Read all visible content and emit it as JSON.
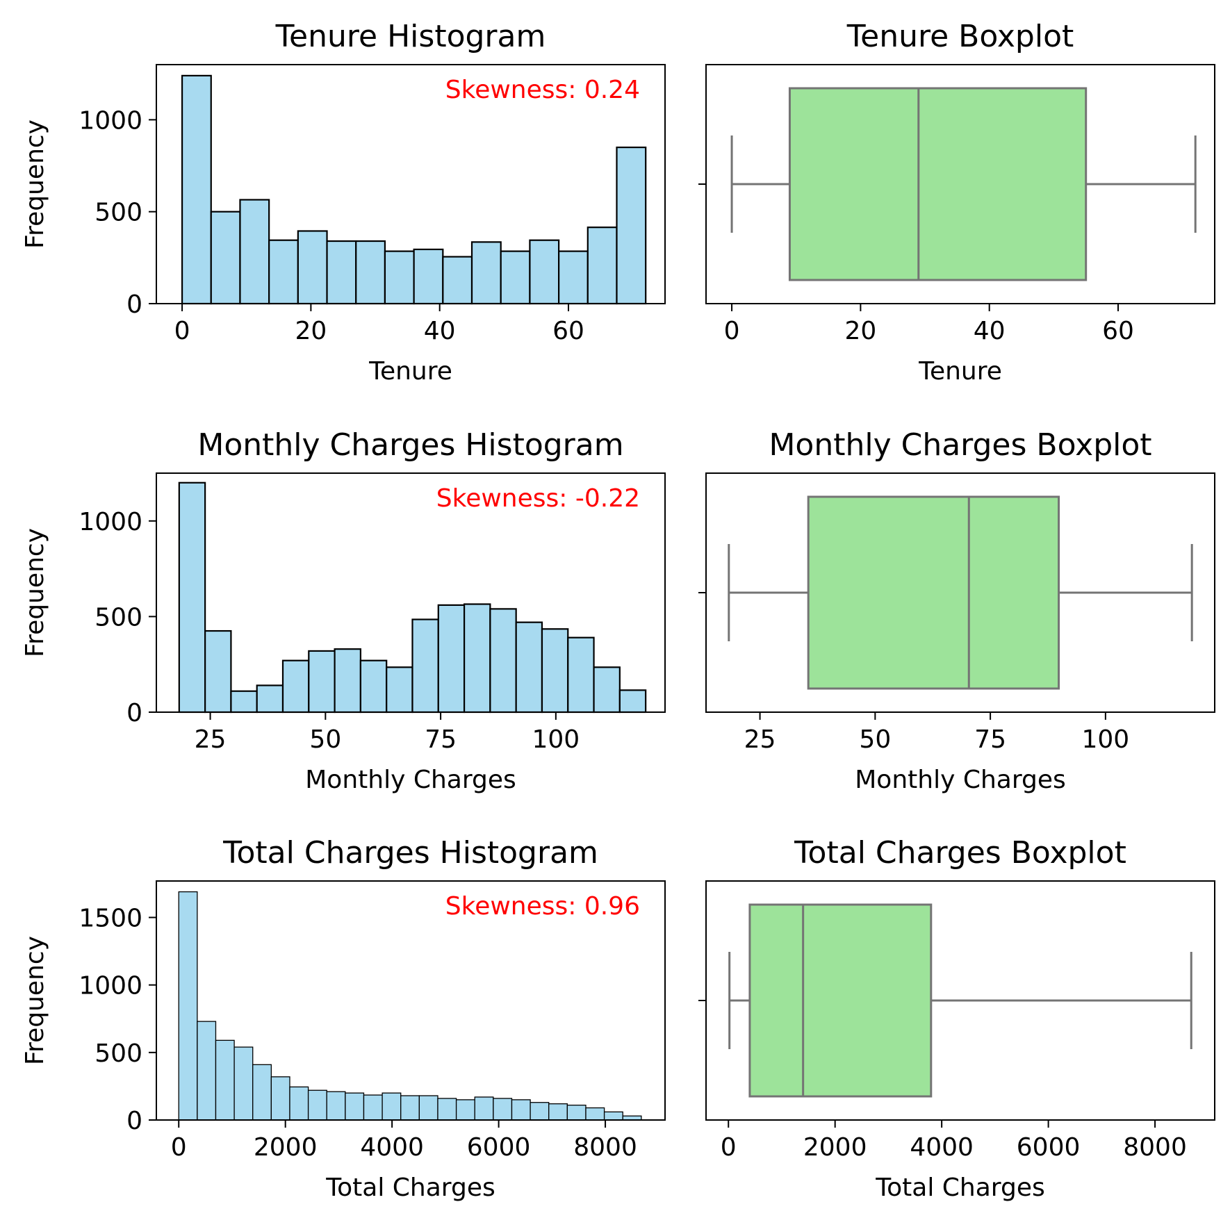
{
  "colors": {
    "hist_fill": "#a8daf0",
    "hist_edge": "#000000",
    "box_fill": "#9de39a",
    "box_line": "#747474",
    "skew_text": "#ff0000",
    "axis": "#000000"
  },
  "chart_data": [
    {
      "type": "bar",
      "title": "Tenure Histogram",
      "xlabel": "Tenure",
      "ylabel": "Frequency",
      "annotation": "Skewness: 0.24",
      "xlim": [
        -4,
        75
      ],
      "ylim": [
        0,
        1300
      ],
      "xticks": [
        0,
        20,
        40,
        60
      ],
      "yticks": [
        0,
        500,
        1000
      ],
      "bin_start": 0,
      "bin_width": 4.5,
      "values": [
        1240,
        500,
        565,
        345,
        395,
        340,
        340,
        285,
        295,
        255,
        335,
        285,
        345,
        285,
        415,
        850
      ]
    },
    {
      "type": "box",
      "title": "Tenure Boxplot",
      "xlabel": "Tenure",
      "xlim": [
        -4,
        75
      ],
      "xticks": [
        0,
        20,
        40,
        60
      ],
      "whisker_low": 0,
      "q1": 9,
      "median": 29,
      "q3": 55,
      "whisker_high": 72
    },
    {
      "type": "bar",
      "title": "Monthly Charges Histogram",
      "xlabel": "Monthly Charges",
      "ylabel": "Frequency",
      "annotation": "Skewness: -0.22",
      "xlim": [
        13.3,
        123.7
      ],
      "ylim": [
        0,
        1250
      ],
      "xticks": [
        25,
        50,
        75,
        100
      ],
      "yticks": [
        0,
        500,
        1000
      ],
      "bin_start": 18.25,
      "bin_width": 5.625,
      "values": [
        1200,
        425,
        110,
        140,
        270,
        320,
        330,
        270,
        235,
        485,
        560,
        565,
        540,
        470,
        435,
        390,
        235,
        115
      ]
    },
    {
      "type": "box",
      "title": "Monthly Charges Boxplot",
      "xlabel": "Monthly Charges",
      "xlim": [
        13.3,
        123.7
      ],
      "xticks": [
        25,
        50,
        75,
        100
      ],
      "whisker_low": 18.25,
      "q1": 35.5,
      "median": 70.35,
      "q3": 89.85,
      "whisker_high": 118.75
    },
    {
      "type": "bar",
      "title": "Total Charges Histogram",
      "xlabel": "Total Charges",
      "ylabel": "Frequency",
      "annotation": "Skewness: 0.96",
      "xlim": [
        -420,
        9120
      ],
      "ylim": [
        0,
        1770
      ],
      "xticks": [
        0,
        2000,
        4000,
        6000,
        8000
      ],
      "yticks": [
        0,
        500,
        1000,
        1500
      ],
      "bin_start": 0,
      "bin_width": 347,
      "values": [
        1690,
        730,
        590,
        540,
        410,
        320,
        245,
        220,
        210,
        200,
        185,
        200,
        180,
        180,
        160,
        150,
        170,
        160,
        150,
        130,
        120,
        110,
        90,
        60,
        30
      ]
    },
    {
      "type": "box",
      "title": "Total Charges Boxplot",
      "xlabel": "Total Charges",
      "xlim": [
        -420,
        9120
      ],
      "xticks": [
        0,
        2000,
        4000,
        6000,
        8000
      ],
      "whisker_low": 19,
      "q1": 400,
      "median": 1400,
      "q3": 3800,
      "whisker_high": 8680
    }
  ]
}
